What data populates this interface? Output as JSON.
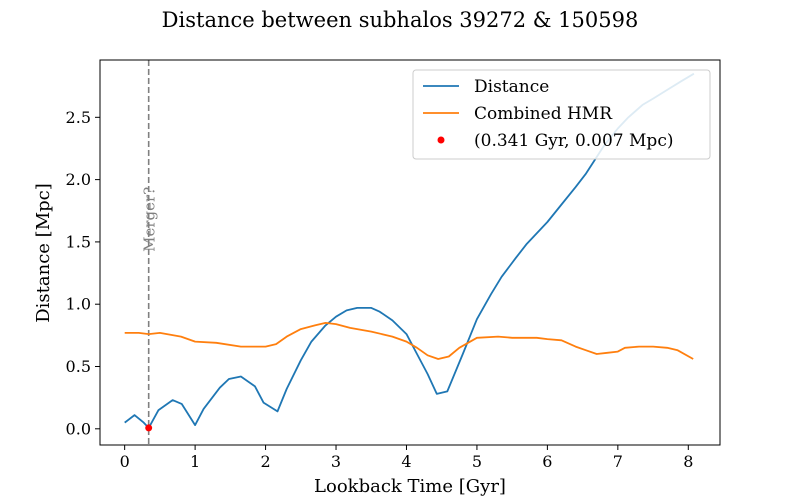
{
  "chart_data": {
    "type": "line",
    "title": "Distance between subhalos 39272 & 150598",
    "xlabel": "Lookback Time [Gyr]",
    "ylabel": "Distance [Mpc]",
    "xlim": [
      -0.35,
      8.45
    ],
    "ylim": [
      -0.13,
      2.96
    ],
    "xticks": [
      0,
      1,
      2,
      3,
      4,
      5,
      6,
      7,
      8
    ],
    "yticks": [
      0.0,
      0.5,
      1.0,
      1.5,
      2.0,
      2.5
    ],
    "xtick_labels": [
      "0",
      "1",
      "2",
      "3",
      "4",
      "5",
      "6",
      "7",
      "8"
    ],
    "ytick_labels": [
      "0.0",
      "0.5",
      "1.0",
      "1.5",
      "2.0",
      "2.5"
    ],
    "grid": false,
    "legend_position": "top-right",
    "legend_entries": [
      "Distance",
      "Combined HMR",
      "(0.341 Gyr, 0.007 Mpc)"
    ],
    "series": [
      {
        "name": "Distance",
        "color": "#1f77b4",
        "x": [
          0.0,
          0.14,
          0.27,
          0.341,
          0.48,
          0.68,
          0.81,
          1.0,
          1.12,
          1.35,
          1.48,
          1.65,
          1.85,
          1.97,
          2.17,
          2.3,
          2.5,
          2.65,
          2.85,
          3.0,
          3.15,
          3.3,
          3.5,
          3.62,
          3.8,
          4.0,
          4.15,
          4.3,
          4.43,
          4.58,
          4.8,
          5.0,
          5.2,
          5.35,
          5.55,
          5.7,
          5.85,
          6.0,
          6.2,
          6.4,
          6.55,
          6.8,
          7.0,
          7.15,
          7.35,
          7.5,
          7.7,
          7.9,
          8.08
        ],
        "y": [
          0.05,
          0.11,
          0.05,
          0.007,
          0.15,
          0.23,
          0.2,
          0.03,
          0.16,
          0.33,
          0.4,
          0.42,
          0.34,
          0.21,
          0.14,
          0.32,
          0.55,
          0.7,
          0.83,
          0.9,
          0.95,
          0.97,
          0.97,
          0.94,
          0.87,
          0.76,
          0.6,
          0.44,
          0.28,
          0.3,
          0.6,
          0.88,
          1.08,
          1.22,
          1.37,
          1.48,
          1.57,
          1.66,
          1.8,
          1.94,
          2.05,
          2.27,
          2.41,
          2.5,
          2.6,
          2.65,
          2.72,
          2.79,
          2.85
        ]
      },
      {
        "name": "Combined HMR",
        "color": "#ff7f0e",
        "x": [
          0.0,
          0.2,
          0.341,
          0.5,
          0.8,
          1.0,
          1.3,
          1.65,
          1.9,
          2.0,
          2.15,
          2.3,
          2.5,
          2.7,
          2.85,
          3.0,
          3.2,
          3.5,
          3.8,
          4.0,
          4.15,
          4.3,
          4.45,
          4.6,
          4.75,
          5.0,
          5.3,
          5.5,
          5.85,
          6.0,
          6.2,
          6.4,
          6.55,
          6.7,
          6.85,
          7.0,
          7.1,
          7.3,
          7.5,
          7.7,
          7.85,
          8.07
        ],
        "y": [
          0.77,
          0.77,
          0.76,
          0.77,
          0.74,
          0.7,
          0.69,
          0.66,
          0.66,
          0.66,
          0.68,
          0.74,
          0.8,
          0.83,
          0.85,
          0.84,
          0.81,
          0.78,
          0.74,
          0.7,
          0.65,
          0.59,
          0.56,
          0.58,
          0.65,
          0.73,
          0.74,
          0.73,
          0.73,
          0.72,
          0.71,
          0.66,
          0.63,
          0.6,
          0.61,
          0.62,
          0.65,
          0.66,
          0.66,
          0.65,
          0.63,
          0.56
        ]
      }
    ],
    "marker": {
      "label": "(0.341 Gyr, 0.007 Mpc)",
      "x": 0.341,
      "y": 0.007,
      "color": "#ff0000"
    },
    "vline": {
      "x": 0.341,
      "label": "Merger?",
      "color": "#808080"
    }
  }
}
